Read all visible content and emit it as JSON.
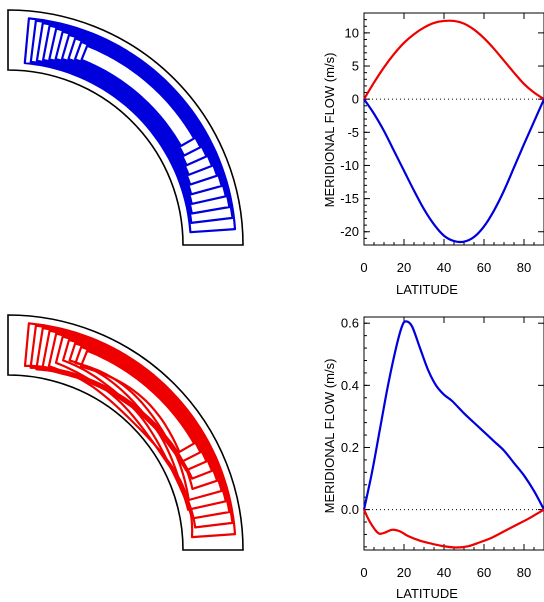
{
  "colors": {
    "primary": "#0000dd",
    "secondary": "#ee0000",
    "axis": "#000000",
    "background": "#ffffff"
  },
  "panels": [
    {
      "name": "top-streamline-panel",
      "color": "#0000dd",
      "description_key": "single-cell"
    },
    {
      "name": "bottom-streamline-panel",
      "color": "#ee0000",
      "description_key": "multi-cell"
    }
  ],
  "chart_data": [
    {
      "type": "line",
      "xlabel": "LATITUDE",
      "ylabel": "MERIDIONAL FLOW (m/s)",
      "xlim": [
        0,
        90
      ],
      "ylim": [
        -22,
        13
      ],
      "xticks": [
        0,
        20,
        40,
        60,
        80
      ],
      "yticks": [
        -20,
        -15,
        -10,
        -5,
        0,
        5,
        10
      ],
      "ytick_labels": [
        "-20",
        "-15",
        "-10",
        "-5",
        "0",
        "5",
        "10"
      ],
      "reference_line": 0,
      "series": [
        {
          "color": "#ee0000",
          "points": [
            [
              0,
              0
            ],
            [
              5,
              2.5
            ],
            [
              10,
              4.8
            ],
            [
              15,
              6.8
            ],
            [
              20,
              8.5
            ],
            [
              25,
              9.8
            ],
            [
              30,
              10.8
            ],
            [
              35,
              11.5
            ],
            [
              40,
              11.8
            ],
            [
              45,
              11.8
            ],
            [
              50,
              11.4
            ],
            [
              55,
              10.5
            ],
            [
              60,
              9.2
            ],
            [
              65,
              7.6
            ],
            [
              70,
              5.8
            ],
            [
              75,
              4.0
            ],
            [
              80,
              2.3
            ],
            [
              85,
              1.0
            ],
            [
              90,
              0
            ]
          ]
        },
        {
          "color": "#0000dd",
          "points": [
            [
              0,
              0
            ],
            [
              5,
              -2.2
            ],
            [
              10,
              -4.8
            ],
            [
              15,
              -7.8
            ],
            [
              20,
              -10.8
            ],
            [
              25,
              -13.8
            ],
            [
              30,
              -16.6
            ],
            [
              35,
              -18.9
            ],
            [
              40,
              -20.6
            ],
            [
              45,
              -21.4
            ],
            [
              50,
              -21.5
            ],
            [
              55,
              -20.8
            ],
            [
              60,
              -19.2
            ],
            [
              65,
              -16.8
            ],
            [
              70,
              -13.8
            ],
            [
              75,
              -10.3
            ],
            [
              80,
              -6.8
            ],
            [
              85,
              -3.4
            ],
            [
              90,
              0
            ]
          ]
        }
      ]
    },
    {
      "type": "line",
      "xlabel": "LATITUDE",
      "ylabel": "MERIDIONAL FLOW (m/s)",
      "xlim": [
        0,
        90
      ],
      "ylim": [
        -0.13,
        0.62
      ],
      "xticks": [
        0,
        20,
        40,
        60,
        80
      ],
      "yticks": [
        0,
        0.2,
        0.4,
        0.6
      ],
      "ytick_labels": [
        "0.0",
        "0.2",
        "0.4",
        "0.6"
      ],
      "reference_line": 0,
      "series": [
        {
          "color": "#0000dd",
          "points": [
            [
              0,
              0
            ],
            [
              4,
              0.12
            ],
            [
              8,
              0.26
            ],
            [
              12,
              0.4
            ],
            [
              16,
              0.52
            ],
            [
              19,
              0.59
            ],
            [
              21,
              0.606
            ],
            [
              24,
              0.59
            ],
            [
              28,
              0.52
            ],
            [
              32,
              0.45
            ],
            [
              36,
              0.4
            ],
            [
              40,
              0.37
            ],
            [
              44,
              0.35
            ],
            [
              50,
              0.31
            ],
            [
              55,
              0.28
            ],
            [
              60,
              0.25
            ],
            [
              65,
              0.22
            ],
            [
              70,
              0.19
            ],
            [
              75,
              0.15
            ],
            [
              80,
              0.11
            ],
            [
              85,
              0.06
            ],
            [
              90,
              0
            ]
          ]
        },
        {
          "color": "#ee0000",
          "points": [
            [
              0,
              0
            ],
            [
              3,
              -0.04
            ],
            [
              7,
              -0.075
            ],
            [
              10,
              -0.075
            ],
            [
              14,
              -0.065
            ],
            [
              18,
              -0.07
            ],
            [
              22,
              -0.085
            ],
            [
              28,
              -0.1
            ],
            [
              34,
              -0.11
            ],
            [
              40,
              -0.118
            ],
            [
              46,
              -0.122
            ],
            [
              52,
              -0.118
            ],
            [
              58,
              -0.105
            ],
            [
              64,
              -0.09
            ],
            [
              70,
              -0.07
            ],
            [
              76,
              -0.05
            ],
            [
              82,
              -0.03
            ],
            [
              86,
              -0.015
            ],
            [
              90,
              0
            ]
          ]
        }
      ]
    }
  ]
}
